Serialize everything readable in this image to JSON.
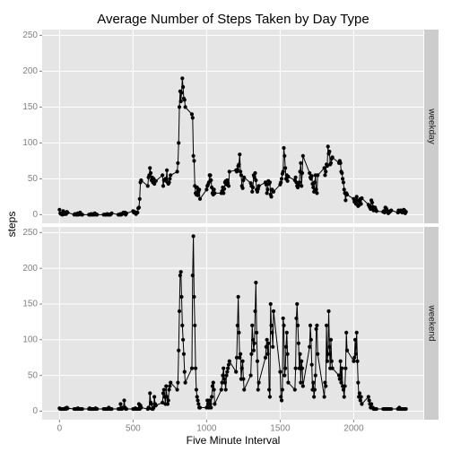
{
  "chart_data": {
    "type": "line",
    "title": "Average Number of Steps Taken by Day Type",
    "x_label": "Five Minute Interval",
    "y_label": "steps",
    "xlim": [
      -118,
      2473
    ],
    "xticks": [
      0,
      500,
      1000,
      1500,
      2000
    ],
    "ylim": [
      -12,
      258
    ],
    "yticks": [
      0,
      50,
      100,
      150,
      200,
      250
    ],
    "grid": true,
    "color": "#000000",
    "x": [
      0,
      5,
      10,
      15,
      20,
      25,
      30,
      35,
      40,
      45,
      50,
      55,
      100,
      105,
      110,
      115,
      120,
      125,
      130,
      135,
      140,
      145,
      150,
      155,
      200,
      205,
      210,
      215,
      220,
      225,
      230,
      235,
      240,
      245,
      250,
      255,
      300,
      305,
      310,
      315,
      320,
      325,
      330,
      335,
      340,
      345,
      350,
      355,
      400,
      405,
      410,
      415,
      420,
      425,
      430,
      435,
      440,
      445,
      450,
      455,
      500,
      505,
      510,
      515,
      520,
      525,
      530,
      535,
      540,
      545,
      550,
      555,
      600,
      605,
      610,
      615,
      620,
      625,
      630,
      635,
      640,
      645,
      650,
      655,
      700,
      705,
      710,
      715,
      720,
      725,
      730,
      735,
      740,
      745,
      750,
      755,
      800,
      805,
      810,
      815,
      820,
      825,
      830,
      835,
      840,
      845,
      850,
      855,
      900,
      905,
      910,
      915,
      920,
      925,
      930,
      935,
      940,
      945,
      950,
      955,
      1000,
      1005,
      1010,
      1015,
      1020,
      1025,
      1030,
      1035,
      1040,
      1045,
      1050,
      1055,
      1100,
      1105,
      1110,
      1115,
      1120,
      1125,
      1130,
      1135,
      1140,
      1145,
      1150,
      1155,
      1200,
      1205,
      1210,
      1215,
      1220,
      1225,
      1230,
      1235,
      1240,
      1245,
      1250,
      1255,
      1300,
      1305,
      1310,
      1315,
      1320,
      1325,
      1330,
      1335,
      1340,
      1345,
      1350,
      1355,
      1400,
      1405,
      1410,
      1415,
      1420,
      1425,
      1430,
      1435,
      1440,
      1445,
      1450,
      1455,
      1500,
      1505,
      1510,
      1515,
      1520,
      1525,
      1530,
      1535,
      1540,
      1545,
      1550,
      1555,
      1600,
      1605,
      1610,
      1615,
      1620,
      1625,
      1630,
      1635,
      1640,
      1645,
      1650,
      1655,
      1700,
      1705,
      1710,
      1715,
      1720,
      1725,
      1730,
      1735,
      1740,
      1745,
      1750,
      1755,
      1800,
      1805,
      1810,
      1815,
      1820,
      1825,
      1830,
      1835,
      1840,
      1845,
      1850,
      1855,
      1900,
      1905,
      1910,
      1915,
      1920,
      1925,
      1930,
      1935,
      1940,
      1945,
      1950,
      1955,
      2000,
      2005,
      2010,
      2015,
      2020,
      2025,
      2030,
      2035,
      2040,
      2045,
      2050,
      2055,
      2100,
      2105,
      2110,
      2115,
      2120,
      2125,
      2130,
      2135,
      2140,
      2145,
      2150,
      2155,
      2200,
      2205,
      2210,
      2215,
      2220,
      2225,
      2230,
      2235,
      2240,
      2245,
      2250,
      2255,
      2300,
      2305,
      2310,
      2315,
      2320,
      2325,
      2330,
      2335,
      2340,
      2345,
      2350,
      2355
    ],
    "series": [
      {
        "name": "weekday",
        "values": [
          7,
          2,
          1,
          1,
          0,
          5,
          1,
          1,
          2,
          1,
          4,
          3,
          0,
          1,
          1,
          0,
          0,
          2,
          0,
          1,
          3,
          1,
          0,
          0,
          0,
          0,
          0,
          1,
          0,
          0,
          1,
          0,
          2,
          1,
          0,
          0,
          0,
          0,
          0,
          0,
          0,
          1,
          0,
          0,
          0,
          0,
          1,
          2,
          0,
          0,
          0,
          1,
          0,
          1,
          2,
          3,
          2,
          3,
          0,
          2,
          5,
          3,
          4,
          3,
          1,
          3,
          3,
          9,
          10,
          22,
          45,
          48,
          40,
          52,
          55,
          65,
          58,
          48,
          52,
          45,
          50,
          43,
          47,
          47,
          55,
          40,
          48,
          48,
          50,
          47,
          62,
          45,
          43,
          45,
          50,
          55,
          60,
          72,
          100,
          150,
          172,
          158,
          170,
          190,
          178,
          162,
          160,
          150,
          140,
          135,
          82,
          75,
          40,
          30,
          28,
          38,
          27,
          32,
          35,
          22,
          35,
          40,
          42,
          45,
          55,
          55,
          48,
          38,
          30,
          28,
          35,
          30,
          30,
          33,
          38,
          30,
          36,
          45,
          47,
          42,
          48,
          44,
          40,
          60,
          62,
          60,
          63,
          68,
          70,
          84,
          60,
          55,
          40,
          37,
          48,
          52,
          44,
          40,
          32,
          38,
          55,
          52,
          58,
          48,
          35,
          32,
          36,
          40,
          45,
          42,
          30,
          35,
          47,
          43,
          45,
          28,
          25,
          35,
          33,
          32,
          42,
          45,
          50,
          57,
          60,
          93,
          82,
          65,
          50,
          55,
          47,
          53,
          48,
          52,
          45,
          40,
          38,
          42,
          45,
          60,
          72,
          40,
          58,
          82,
          58,
          52,
          50,
          54,
          43,
          38,
          32,
          45,
          55,
          35,
          30,
          55,
          65,
          55,
          60,
          70,
          68,
          95,
          85,
          88,
          70,
          72,
          78,
          80,
          72,
          75,
          72,
          60,
          58,
          50,
          45,
          35,
          30,
          20,
          30,
          28,
          22,
          18,
          20,
          15,
          25,
          20,
          12,
          13,
          18,
          22,
          15,
          23,
          14,
          12,
          10,
          8,
          20,
          17,
          11,
          6,
          8,
          10,
          7,
          5,
          4,
          5,
          3,
          10,
          9,
          7,
          5,
          2,
          3,
          4,
          5,
          6,
          3,
          6,
          4,
          5,
          6,
          5,
          3,
          4,
          7,
          6,
          2,
          4
        ]
      },
      {
        "name": "weekend",
        "values": [
          4,
          3,
          3,
          3,
          3,
          3,
          3,
          3,
          4,
          3,
          5,
          4,
          3,
          3,
          3,
          3,
          3,
          4,
          3,
          3,
          3,
          3,
          3,
          3,
          3,
          4,
          3,
          3,
          3,
          3,
          3,
          3,
          3,
          4,
          3,
          3,
          3,
          3,
          3,
          3,
          3,
          3,
          3,
          5,
          3,
          3,
          3,
          3,
          3,
          3,
          3,
          10,
          3,
          3,
          5,
          5,
          15,
          5,
          3,
          3,
          3,
          3,
          3,
          4,
          3,
          3,
          3,
          3,
          10,
          3,
          8,
          5,
          3,
          5,
          4,
          25,
          12,
          10,
          3,
          3,
          5,
          20,
          10,
          8,
          12,
          25,
          30,
          20,
          10,
          35,
          20,
          10,
          15,
          30,
          35,
          40,
          30,
          40,
          85,
          140,
          190,
          195,
          160,
          120,
          100,
          80,
          55,
          40,
          60,
          190,
          245,
          160,
          120,
          60,
          30,
          20,
          15,
          10,
          5,
          5,
          5,
          15,
          10,
          5,
          15,
          10,
          5,
          20,
          35,
          40,
          30,
          10,
          30,
          40,
          50,
          60,
          45,
          40,
          30,
          50,
          55,
          60,
          65,
          70,
          55,
          75,
          120,
          160,
          110,
          75,
          80,
          45,
          60,
          70,
          45,
          30,
          50,
          80,
          120,
          100,
          85,
          95,
          140,
          180,
          110,
          70,
          30,
          40,
          75,
          90,
          100,
          80,
          95,
          30,
          20,
          150,
          120,
          110,
          90,
          140,
          55,
          20,
          15,
          30,
          130,
          120,
          50,
          60,
          90,
          110,
          80,
          40,
          30,
          60,
          130,
          150,
          120,
          95,
          60,
          80,
          40,
          70,
          60,
          35,
          90,
          120,
          100,
          65,
          30,
          40,
          20,
          30,
          50,
          115,
          120,
          80,
          20,
          40,
          35,
          120,
          70,
          80,
          140,
          90,
          60,
          100,
          70,
          60,
          50,
          45,
          70,
          40,
          60,
          35,
          30,
          20,
          35,
          60,
          110,
          85,
          70,
          75,
          100,
          80,
          110,
          70,
          40,
          20,
          25,
          15,
          20,
          10,
          20,
          15,
          10,
          5,
          10,
          5,
          5,
          3,
          3,
          3,
          3,
          3,
          3,
          3,
          3,
          3,
          3,
          3,
          3,
          3,
          3,
          3,
          3,
          3,
          3,
          3,
          5,
          3,
          3,
          3,
          3,
          3,
          3,
          3,
          3,
          3
        ]
      }
    ]
  }
}
